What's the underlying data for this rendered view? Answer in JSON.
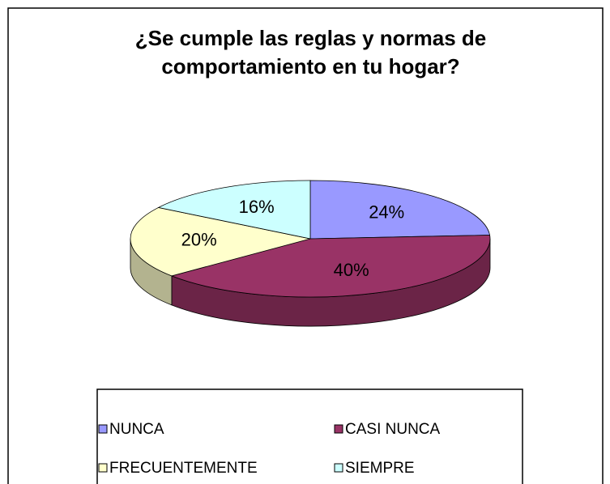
{
  "chart_data": {
    "type": "pie3d",
    "title": "¿Se cumple las reglas y normas de comportamiento en tu hogar?",
    "categories": [
      "NUNCA",
      "CASI NUNCA",
      "FRECUENTEMENTE",
      "SIEMPRE"
    ],
    "values": [
      24,
      40,
      20,
      16
    ],
    "value_labels": [
      "24%",
      "40%",
      "20%",
      "16%"
    ],
    "colors": [
      "#9999ff",
      "#993366",
      "#ffffcc",
      "#ccffff"
    ],
    "legend": "bottom"
  }
}
